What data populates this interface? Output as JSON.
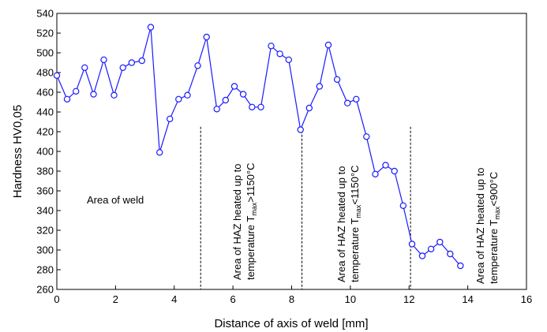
{
  "chart_data": {
    "type": "line",
    "xlabel": "Distance of axis of weld [mm]",
    "ylabel": "Hardness HV0,05",
    "xlim": [
      0,
      16
    ],
    "ylim": [
      260,
      540
    ],
    "xticks": [
      0,
      2,
      4,
      6,
      8,
      10,
      12,
      14,
      16
    ],
    "yticks": [
      260,
      280,
      300,
      320,
      340,
      360,
      380,
      400,
      420,
      440,
      460,
      480,
      500,
      520,
      540
    ],
    "x_tick_labels": [
      "0",
      "2",
      "4",
      "6",
      "8",
      "10",
      "12",
      "14",
      "16"
    ],
    "y_tick_labels": [
      "260",
      "280",
      "300",
      "320",
      "340",
      "360",
      "380",
      "400",
      "420",
      "440",
      "460",
      "480",
      "500",
      "520",
      "540"
    ],
    "grid": false,
    "series_color": "#1a1aff",
    "marker": "open-circle",
    "x": [
      0.0,
      0.35,
      0.65,
      0.95,
      1.25,
      1.6,
      1.95,
      2.25,
      2.55,
      2.9,
      3.2,
      3.5,
      3.85,
      4.15,
      4.45,
      4.8,
      5.1,
      5.45,
      5.75,
      6.05,
      6.35,
      6.65,
      6.95,
      7.3,
      7.6,
      7.9,
      8.3,
      8.6,
      8.95,
      9.25,
      9.55,
      9.9,
      10.2,
      10.55,
      10.85,
      11.2,
      11.5,
      11.8,
      12.1,
      12.45,
      12.75,
      13.05,
      13.4,
      13.75
    ],
    "values": [
      477,
      453,
      461,
      485,
      458,
      493,
      457,
      485,
      490,
      492,
      526,
      399,
      433,
      453,
      457,
      487,
      516,
      443,
      452,
      466,
      458,
      445,
      445,
      507,
      499,
      493,
      422,
      444,
      466,
      508,
      473,
      449,
      453,
      415,
      377,
      386,
      380,
      345,
      306,
      294,
      301,
      308,
      296,
      284
    ],
    "annotations": [
      {
        "line1": "Area of weld",
        "line2": ""
      },
      {
        "line1": "Area of HAZ heated up to",
        "line2_prefix": "temperature T",
        "sub": "max",
        "line2_suffix": ">1150°C"
      },
      {
        "line1": "Area of HAZ heated up to",
        "line2_prefix": "temperature T",
        "sub": "max",
        "line2_suffix": "<1150°C"
      },
      {
        "line1": "Area of HAZ heated up to",
        "line2_prefix": "temperature T",
        "sub": "max",
        "line2_suffix": "<900°C"
      }
    ],
    "dividers_x": [
      4.9,
      8.35,
      12.05
    ],
    "dividers_from_y": 425
  }
}
